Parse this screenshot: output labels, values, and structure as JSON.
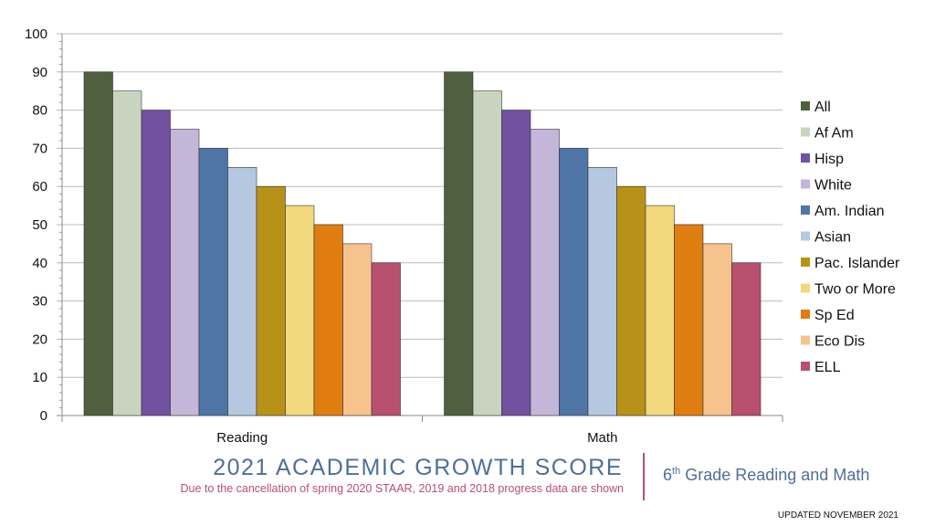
{
  "chart_data": {
    "type": "bar",
    "categories": [
      "Reading",
      "Math"
    ],
    "series": [
      {
        "name": "All",
        "color": "#4f5f3f",
        "values": [
          90,
          90
        ]
      },
      {
        "name": "Af Am",
        "color": "#c8d4bf",
        "values": [
          85,
          85
        ]
      },
      {
        "name": "Hisp",
        "color": "#7151a0",
        "values": [
          80,
          80
        ]
      },
      {
        "name": "White",
        "color": "#c4b6d9",
        "values": [
          75,
          75
        ]
      },
      {
        "name": "Am. Indian",
        "color": "#4e75a5",
        "values": [
          70,
          70
        ]
      },
      {
        "name": "Asian",
        "color": "#b5c8e0",
        "values": [
          65,
          65
        ]
      },
      {
        "name": "Pac. Islander",
        "color": "#b89218",
        "values": [
          60,
          60
        ]
      },
      {
        "name": "Two or More",
        "color": "#f2d87c",
        "values": [
          55,
          55
        ]
      },
      {
        "name": "Sp Ed",
        "color": "#df7d10",
        "values": [
          50,
          50
        ]
      },
      {
        "name": "Eco Dis",
        "color": "#f6c38e",
        "values": [
          45,
          45
        ]
      },
      {
        "name": "ELL",
        "color": "#b85070",
        "values": [
          40,
          40
        ]
      }
    ],
    "ylim": [
      0,
      100
    ],
    "yticks": [
      "0",
      "10",
      "20",
      "30",
      "40",
      "50",
      "60",
      "70",
      "80",
      "90",
      "100"
    ],
    "grid": true,
    "legend": "right"
  },
  "footer": {
    "title": "2021 ACADEMIC GROWTH SCORE",
    "subtitle": "Due to the cancellation of spring 2020 STAAR, 2019 and 2018 progress data are shown",
    "grade_num": "6",
    "grade_sup": "th",
    "grade_rest": " Grade Reading and Math",
    "updated": "UPDATED NOVEMBER 2021"
  }
}
